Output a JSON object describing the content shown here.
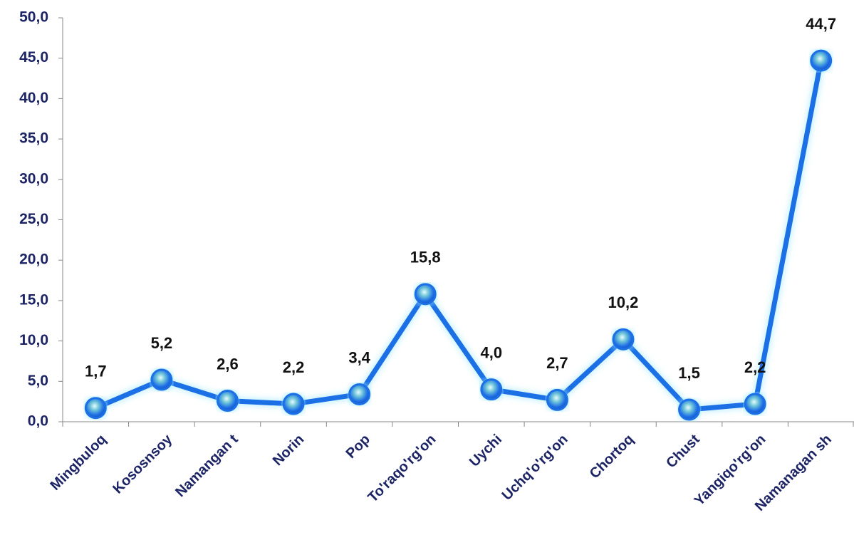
{
  "chart_data": {
    "type": "line",
    "categories": [
      "Mingbuloq",
      "Kososnsoy",
      "Namangan t",
      "Norin",
      "Pop",
      "To'raqo'rg'on",
      "Uychi",
      "Uchq'o'rg'on",
      "Chortoq",
      "Chust",
      "Yangiqo'rg'on",
      "Namanagan sh"
    ],
    "values": [
      1.7,
      5.2,
      2.6,
      2.2,
      3.4,
      15.8,
      4.0,
      2.7,
      10.2,
      1.5,
      2.2,
      44.7
    ],
    "value_labels": [
      "1,7",
      "5,2",
      "2,6",
      "2,2",
      "3,4",
      "15,8",
      "4,0",
      "2,7",
      "10,2",
      "1,5",
      "2,2",
      "44,7"
    ],
    "color": "#1f6fe6",
    "ylim": [
      0,
      50
    ],
    "yticks": [
      {
        "value": 0,
        "label": "0,0"
      },
      {
        "value": 5,
        "label": "5,0"
      },
      {
        "value": 10,
        "label": "10,0"
      },
      {
        "value": 15,
        "label": "15,0"
      },
      {
        "value": 20,
        "label": "20,0"
      },
      {
        "value": 25,
        "label": "25,0"
      },
      {
        "value": 30,
        "label": "30,0"
      },
      {
        "value": 35,
        "label": "35,0"
      },
      {
        "value": 40,
        "label": "40,0"
      },
      {
        "value": 45,
        "label": "45,0"
      },
      {
        "value": 50,
        "label": "50,0"
      }
    ]
  }
}
